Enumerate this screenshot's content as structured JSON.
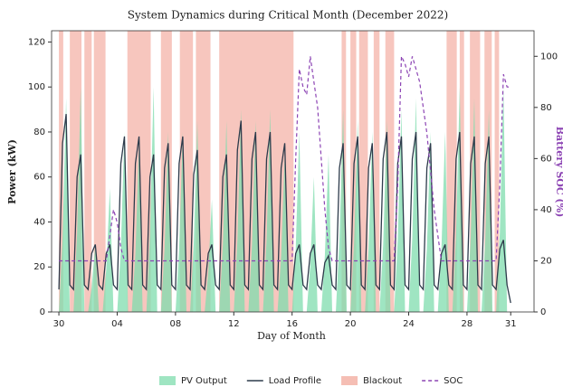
{
  "chart_data": {
    "type": "line",
    "title": "System Dynamics during Critical Month (December 2022)",
    "xlabel": "Day of Month",
    "ylabel": "Power (kW)",
    "y2label": "Battery SOC (%)",
    "xlim": [
      -0.5,
      32.6
    ],
    "ylim": [
      0,
      125
    ],
    "y2lim": [
      0,
      110
    ],
    "xticks": [
      {
        "value": 0,
        "label": "30"
      },
      {
        "value": 4,
        "label": "04"
      },
      {
        "value": 8,
        "label": "08"
      },
      {
        "value": 12,
        "label": "12"
      },
      {
        "value": 16,
        "label": "16"
      },
      {
        "value": 20,
        "label": "20"
      },
      {
        "value": 24,
        "label": "24"
      },
      {
        "value": 28,
        "label": "28"
      },
      {
        "value": 31,
        "label": "31"
      }
    ],
    "yticks": [
      0,
      20,
      40,
      60,
      80,
      100,
      120
    ],
    "y2ticks": [
      0,
      20,
      40,
      60,
      80,
      100
    ],
    "x": [
      0,
      0.25,
      0.5,
      0.75,
      1,
      1.25,
      1.5,
      1.75,
      2,
      2.25,
      2.5,
      2.75,
      3,
      3.25,
      3.5,
      3.75,
      4,
      4.25,
      4.5,
      4.75,
      5,
      5.25,
      5.5,
      5.75,
      6,
      6.25,
      6.5,
      6.75,
      7,
      7.25,
      7.5,
      7.75,
      8,
      8.25,
      8.5,
      8.75,
      9,
      9.25,
      9.5,
      9.75,
      10,
      10.25,
      10.5,
      10.75,
      11,
      11.25,
      11.5,
      11.75,
      12,
      12.25,
      12.5,
      12.75,
      13,
      13.25,
      13.5,
      13.75,
      14,
      14.25,
      14.5,
      14.75,
      15,
      15.25,
      15.5,
      15.75,
      16,
      16.25,
      16.5,
      16.75,
      17,
      17.25,
      17.5,
      17.75,
      18,
      18.25,
      18.5,
      18.75,
      19,
      19.25,
      19.5,
      19.75,
      20,
      20.25,
      20.5,
      20.75,
      21,
      21.25,
      21.5,
      21.75,
      22,
      22.25,
      22.5,
      22.75,
      23,
      23.25,
      23.5,
      23.75,
      24,
      24.25,
      24.5,
      24.75,
      25,
      25.25,
      25.5,
      25.75,
      26,
      26.25,
      26.5,
      26.75,
      27,
      27.25,
      27.5,
      27.75,
      28,
      28.25,
      28.5,
      28.75,
      29,
      29.25,
      29.5,
      29.75,
      30,
      30.25,
      30.5,
      30.75,
      31
    ],
    "series": [
      {
        "name": "PV Output",
        "color": "#7fdcae",
        "fill": true,
        "values": [
          0,
          33,
          95,
          0,
          0,
          35,
          100,
          0,
          0,
          11,
          30,
          0,
          0,
          19,
          55,
          0,
          0,
          28,
          80,
          0,
          0,
          26,
          75,
          0,
          0,
          35,
          100,
          0,
          0,
          28,
          80,
          0,
          0,
          28,
          80,
          0,
          0,
          30,
          85,
          0,
          0,
          18,
          50,
          0,
          0,
          30,
          85,
          0,
          0,
          32,
          90,
          0,
          0,
          30,
          85,
          0,
          0,
          32,
          90,
          0,
          0,
          25,
          70,
          0,
          0,
          28,
          80,
          0,
          0,
          21,
          60,
          0,
          0,
          25,
          70,
          0,
          0,
          32,
          90,
          0,
          0,
          30,
          85,
          0,
          0,
          28,
          80,
          0,
          0,
          30,
          85,
          0,
          0,
          32,
          90,
          0,
          0,
          33,
          95,
          0,
          0,
          28,
          80,
          0,
          0,
          28,
          80,
          0,
          0,
          35,
          100,
          0,
          0,
          33,
          95,
          0,
          0,
          32,
          90,
          0,
          0,
          35,
          100,
          0,
          0
        ]
      },
      {
        "name": "Load Profile",
        "color": "#2d3b4b",
        "values": [
          10,
          75,
          88,
          12,
          10,
          60,
          70,
          12,
          10,
          26,
          30,
          12,
          10,
          26,
          30,
          12,
          10,
          66,
          78,
          12,
          10,
          66,
          78,
          12,
          10,
          60,
          70,
          12,
          10,
          64,
          75,
          12,
          10,
          66,
          78,
          12,
          10,
          61,
          72,
          12,
          10,
          26,
          30,
          12,
          10,
          60,
          70,
          12,
          10,
          72,
          85,
          12,
          10,
          68,
          80,
          12,
          10,
          68,
          80,
          12,
          10,
          64,
          75,
          12,
          10,
          26,
          30,
          12,
          10,
          26,
          30,
          12,
          10,
          22,
          25,
          12,
          10,
          64,
          75,
          12,
          10,
          66,
          78,
          12,
          10,
          64,
          75,
          12,
          10,
          68,
          80,
          12,
          10,
          66,
          78,
          12,
          10,
          68,
          80,
          12,
          10,
          64,
          75,
          12,
          10,
          26,
          30,
          12,
          10,
          68,
          80,
          12,
          10,
          66,
          78,
          12,
          10,
          66,
          78,
          12,
          10,
          28,
          32,
          12,
          4
        ]
      },
      {
        "name": "SOC",
        "color": "#8c44b4",
        "dash": true,
        "axis": "y2",
        "values": [
          20,
          20,
          20,
          20,
          20,
          20,
          20,
          20,
          20,
          20,
          20,
          20,
          20,
          20,
          30,
          40,
          35,
          25,
          20,
          20,
          20,
          20,
          20,
          20,
          20,
          20,
          20,
          20,
          20,
          20,
          20,
          20,
          20,
          20,
          20,
          20,
          20,
          20,
          20,
          20,
          20,
          20,
          20,
          20,
          20,
          20,
          20,
          20,
          20,
          20,
          20,
          20,
          20,
          20,
          20,
          20,
          20,
          20,
          20,
          20,
          20,
          20,
          20,
          20,
          20,
          60,
          95,
          88,
          85,
          100,
          90,
          80,
          60,
          40,
          25,
          20,
          20,
          20,
          20,
          20,
          20,
          20,
          20,
          20,
          20,
          20,
          20,
          20,
          20,
          20,
          20,
          20,
          20,
          50,
          100,
          97,
          92,
          100,
          95,
          90,
          80,
          70,
          55,
          40,
          30,
          20,
          20,
          20,
          20,
          20,
          20,
          20,
          20,
          20,
          20,
          20,
          20,
          20,
          20,
          20,
          20,
          50,
          93,
          88,
          88
        ]
      }
    ],
    "bands": {
      "name": "Blackout",
      "color": "#f2a89b",
      "intervals": [
        [
          0,
          0.3
        ],
        [
          0.75,
          1.55
        ],
        [
          1.75,
          2.25
        ],
        [
          2.4,
          3.2
        ],
        [
          4.7,
          6.3
        ],
        [
          7,
          7.75
        ],
        [
          8.3,
          9.2
        ],
        [
          9.4,
          10.4
        ],
        [
          11,
          16.1
        ],
        [
          19.4,
          19.7
        ],
        [
          20,
          20.4
        ],
        [
          20.6,
          21.2
        ],
        [
          21.6,
          22
        ],
        [
          22.4,
          23
        ],
        [
          26.6,
          27.3
        ],
        [
          27.5,
          27.8
        ],
        [
          28.2,
          28.9
        ],
        [
          29.2,
          29.7
        ],
        [
          29.9,
          30.2
        ]
      ]
    }
  }
}
